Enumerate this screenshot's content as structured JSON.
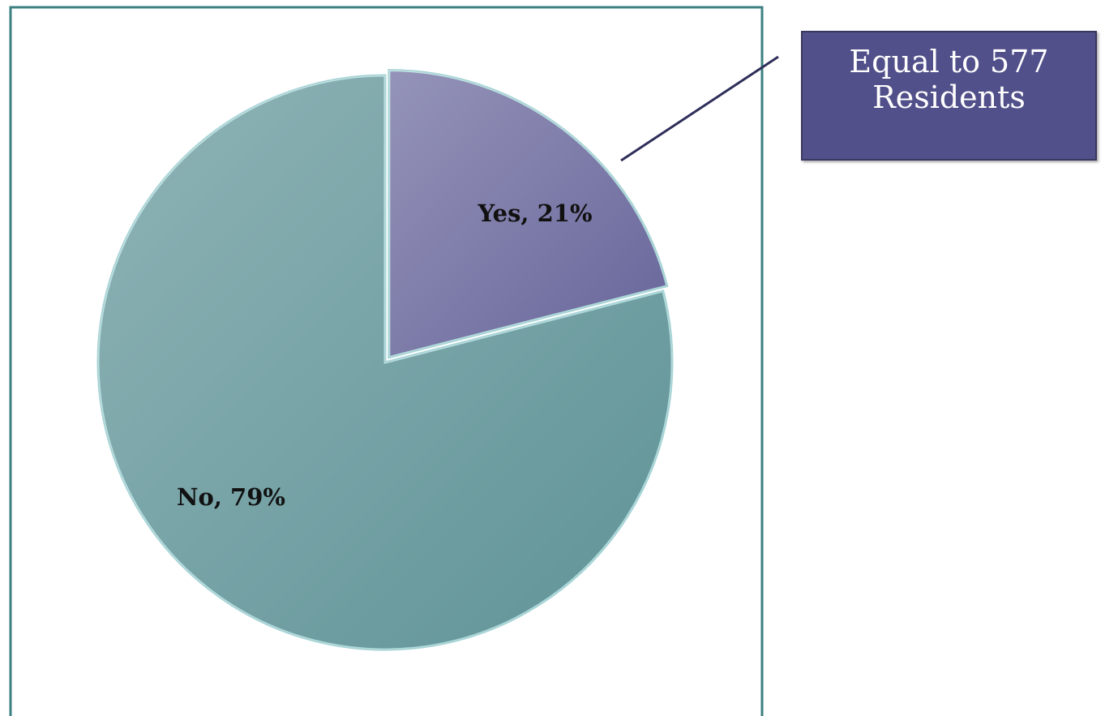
{
  "chart_data": {
    "type": "pie",
    "categories": [
      "Yes",
      "No"
    ],
    "values": [
      21,
      79
    ],
    "value_labels": [
      "Yes, 21%",
      "No, 79%"
    ],
    "colors": [
      "#67659a",
      "#5f9397"
    ],
    "annotation": "Equal to 577 Residents"
  }
}
